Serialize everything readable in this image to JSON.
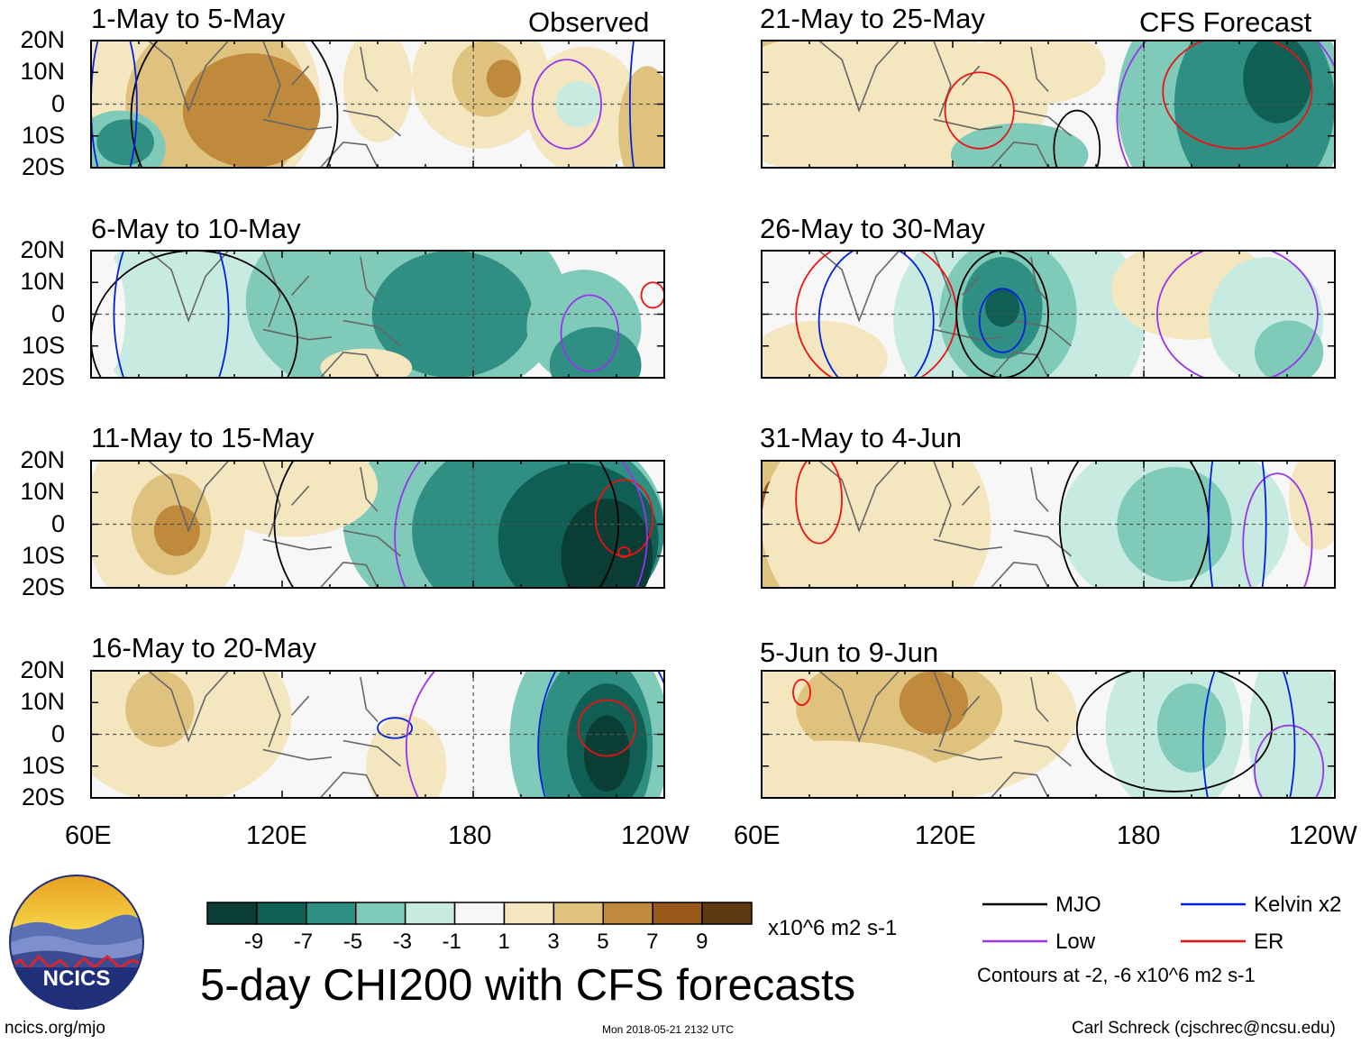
{
  "colors": {
    "bins": [
      "#0a3d33",
      "#0f5f55",
      "#2f8f82",
      "#7fcab9",
      "#c7ebe1",
      "#f7f7f7",
      "#f4e6bf",
      "#e0c27f",
      "#c08a3c",
      "#98581b",
      "#5e3810"
    ],
    "land_outline": "#666666",
    "mjo": "#000000",
    "kelvin": "#0022dd",
    "low": "#9933ee",
    "er": "#ee1111"
  },
  "lat_labels": [
    "20N",
    "10N",
    "0",
    "10S",
    "20S"
  ],
  "lon_labels": [
    "60E",
    "120E",
    "180",
    "120W"
  ],
  "panels": [
    {
      "title": "1-May to 5-May",
      "tag": "Observed"
    },
    {
      "title": "6-May to 10-May",
      "tag": ""
    },
    {
      "title": "11-May to 15-May",
      "tag": ""
    },
    {
      "title": "16-May to 20-May",
      "tag": ""
    },
    {
      "title": "21-May to 25-May",
      "tag": "CFS Forecast"
    },
    {
      "title": "26-May to 30-May",
      "tag": ""
    },
    {
      "title": "31-May to 4-Jun",
      "tag": ""
    },
    {
      "title": "5-Jun to 9-Jun",
      "tag": ""
    }
  ],
  "colorbar": {
    "ticks": [
      "-9",
      "-7",
      "-5",
      "-3",
      "-1",
      "1",
      "3",
      "5",
      "7",
      "9"
    ],
    "units": "x10^6 m2 s-1"
  },
  "legend": {
    "items": [
      {
        "label": "MJO",
        "color_key": "mjo"
      },
      {
        "label": "Kelvin x2",
        "color_key": "kelvin"
      },
      {
        "label": "Low",
        "color_key": "low"
      },
      {
        "label": "ER",
        "color_key": "er"
      }
    ],
    "note": "Contours at -2, -6 x10^6 m2 s-1"
  },
  "logo": {
    "text": "NCICS"
  },
  "footer": {
    "url": "ncics.org/mjo",
    "timestamp": "Mon 2018-05-21 2132 UTC",
    "author": "Carl Schreck (cjschrec@ncsu.edu)"
  },
  "main_title": "5-day CHI200 with CFS forecasts"
}
